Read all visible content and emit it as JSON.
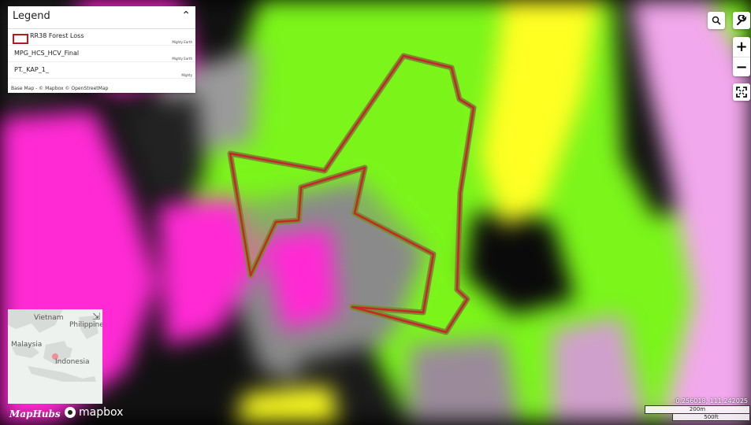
{
  "legend": {
    "title": "Legend",
    "toggle_icon": "chevron-up-icon",
    "toggle_glyph": "⌃",
    "layers": [
      {
        "name": "RR38 Forest Loss",
        "source": "Mighty Earth",
        "swatch_color": "#b71c1c"
      },
      {
        "name": "MPG_HCS_HCV_Final",
        "source": "Mighty Earth"
      },
      {
        "name": "PT._KAP_1_",
        "source": "Mighty"
      }
    ],
    "attribution": "Base Map - © Mapbox © OpenStreetMap"
  },
  "controls": {
    "search_icon": "search-icon",
    "tools_icon": "wrench-icon",
    "zoom_in": "+",
    "zoom_out": "−",
    "fullscreen_icon": "fullscreen-icon"
  },
  "minimap": {
    "labels": {
      "vietnam": "Vietnam",
      "philippines": "Philippines",
      "malaysia": "Malaysia",
      "indonesia": "Indonesia"
    },
    "collapse_icon": "arrow-collapse-icon",
    "collapse_glyph": "⇲"
  },
  "branding": {
    "maphubs": "MapHubs",
    "mapbox": "mapbox"
  },
  "position": {
    "coordinates": "-0.256018, 111.242025",
    "scale_primary": "200m",
    "scale_secondary": "500ft"
  },
  "colors": {
    "forest_green": "#7bf51a",
    "loss_magenta": "#ff2ad4",
    "light_pink": "#f2a8ec",
    "yellow": "#ffff22",
    "polygon_stroke": "#c62828"
  }
}
